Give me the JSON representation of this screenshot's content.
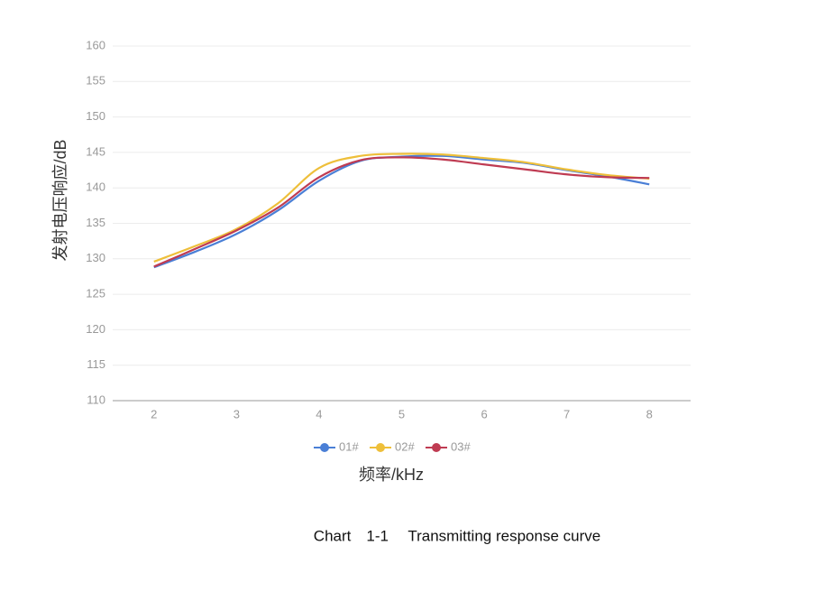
{
  "chart_data": {
    "type": "line",
    "y_label": "发射电压响应/dB",
    "x_label": "频率/kHz",
    "caption": "Chart　1-1　 Transmitting response curve",
    "x": [
      2,
      2.5,
      3,
      3.5,
      4,
      4.5,
      5,
      5.5,
      6,
      6.5,
      7,
      7.5,
      8
    ],
    "series": [
      {
        "name": "01#",
        "color": "#4a7fd6",
        "values": [
          128.8,
          131,
          133.5,
          136.8,
          141,
          143.8,
          144.4,
          144.5,
          144,
          143.5,
          142.5,
          141.6,
          140.5
        ]
      },
      {
        "name": "02#",
        "color": "#eebf3a",
        "values": [
          129.6,
          131.8,
          134.2,
          137.8,
          142.8,
          144.5,
          144.8,
          144.7,
          144.2,
          143.6,
          142.6,
          141.8,
          141.3
        ]
      },
      {
        "name": "03#",
        "color": "#bf3b52",
        "values": [
          128.9,
          131.4,
          134,
          137.2,
          141.5,
          143.9,
          144.3,
          144,
          143.3,
          142.6,
          141.9,
          141.5,
          141.4
        ]
      }
    ],
    "xlim": [
      1.5,
      8.5
    ],
    "xticks": [
      2,
      3,
      4,
      5,
      6,
      7,
      8
    ],
    "ylim": [
      110,
      160
    ],
    "yticks": [
      110,
      115,
      120,
      125,
      130,
      135,
      140,
      145,
      150,
      155,
      160
    ],
    "grid": true
  }
}
